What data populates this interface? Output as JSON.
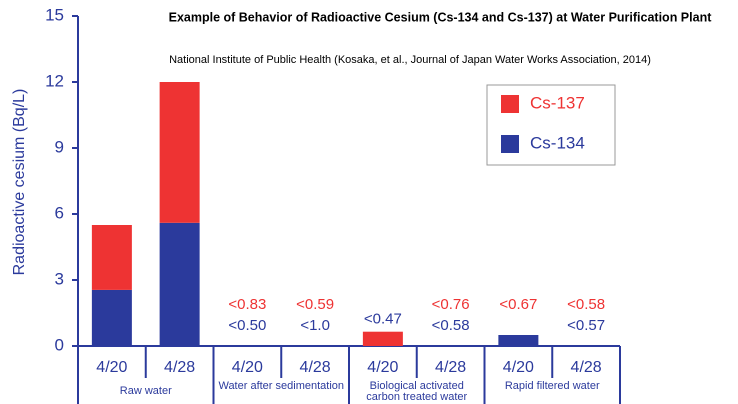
{
  "chart_data": {
    "type": "stacked_bar",
    "title": "Example of Behavior of Radioactive Cesium (Cs-134 and Cs-137) at Water Purification Plant",
    "subtitle": "National Institute of Public Health (Kosaka, et al., Journal of Japan Water Works Association, 2014)",
    "y_label": "Radioactive cesium (Bq/L)",
    "categories": [
      "4/20",
      "4/28",
      "4/20",
      "4/28",
      "4/20",
      "4/28",
      "4/20",
      "4/28"
    ],
    "groups": [
      "Raw water",
      "Water after sedimentation",
      "Biological activated carbon treated water",
      "Rapid filtered water"
    ],
    "series": [
      {
        "name": "Cs-134",
        "color": "#2b3a9c",
        "values": [
          2.55,
          5.6,
          null,
          null,
          null,
          null,
          0.5,
          null
        ],
        "value_labels": [
          null,
          null,
          "<0.50",
          "<1.0",
          "<0.47",
          "<0.58",
          null,
          "<0.57"
        ]
      },
      {
        "name": "Cs-137",
        "color": "#ee3333",
        "values": [
          2.95,
          6.4,
          null,
          null,
          0.65,
          null,
          null,
          null
        ],
        "value_labels": [
          null,
          null,
          "<0.83",
          "<0.59",
          null,
          "<0.76",
          "<0.67",
          "<0.58"
        ]
      }
    ],
    "ylim": [
      0,
      15
    ],
    "yticks": [
      0,
      3,
      6,
      9,
      12,
      15
    ],
    "legend": "upper right"
  }
}
